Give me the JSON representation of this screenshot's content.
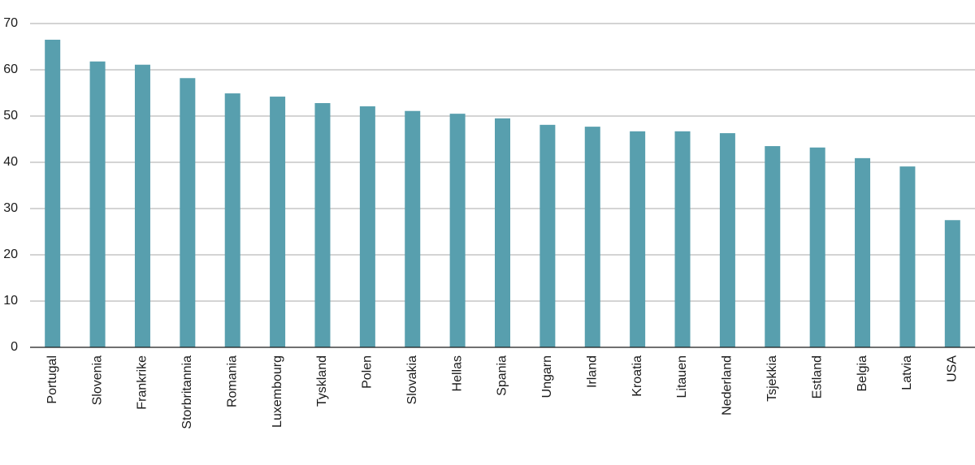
{
  "chart_data": {
    "type": "bar",
    "categories": [
      "Portugal",
      "Slovenia",
      "Frankrike",
      "Storbritannia",
      "Romania",
      "Luxembourg",
      "Tyskland",
      "Polen",
      "Slovakia",
      "Hellas",
      "Spania",
      "Ungarn",
      "Irland",
      "Kroatia",
      "Litauen",
      "Nederland",
      "Tsjekkia",
      "Estland",
      "Belgia",
      "Latvia",
      "USA"
    ],
    "values": [
      66.5,
      61.8,
      61.1,
      58.2,
      54.9,
      54.2,
      52.8,
      52.1,
      51.1,
      50.5,
      49.5,
      48.1,
      47.7,
      46.7,
      46.7,
      46.3,
      43.5,
      43.2,
      40.9,
      39.1,
      27.5
    ],
    "color": "#589fae",
    "ylim": [
      0,
      70
    ],
    "yticks": [
      0,
      10,
      20,
      30,
      40,
      50,
      60,
      70
    ],
    "grid": true
  }
}
